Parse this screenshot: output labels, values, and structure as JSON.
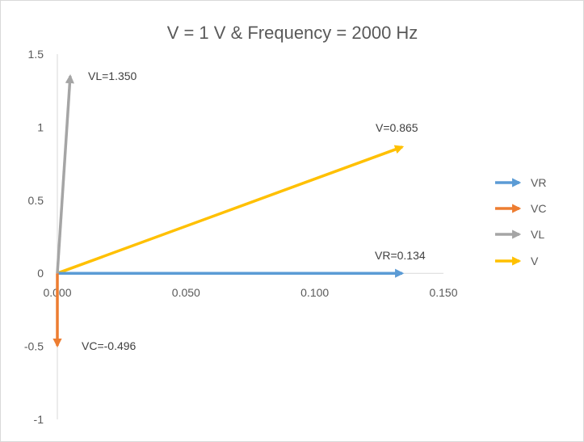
{
  "chart_data": {
    "type": "scatter",
    "title": "V = 1 V & Frequency = 2000 Hz",
    "xlabel": "",
    "ylabel": "",
    "xlim": [
      0,
      0.15
    ],
    "ylim": [
      -1,
      1.5
    ],
    "x_ticks": [
      "0.000",
      "0.050",
      "0.100",
      "0.150"
    ],
    "y_ticks": [
      "-1",
      "-0.5",
      "0",
      "0.5",
      "1",
      "1.5"
    ],
    "grid": false,
    "legend_position": "right",
    "series": [
      {
        "name": "VR",
        "color": "#5b9bd5",
        "points": [
          [
            0,
            0
          ],
          [
            0.134,
            0
          ]
        ],
        "label": "VR=0.134"
      },
      {
        "name": "VC",
        "color": "#ed7d31",
        "points": [
          [
            0,
            0
          ],
          [
            0,
            -0.496
          ]
        ],
        "label": "VC=-0.496"
      },
      {
        "name": "VL",
        "color": "#a5a5a5",
        "points": [
          [
            0,
            0
          ],
          [
            0.005,
            1.35
          ]
        ],
        "label": "VL=1.350"
      },
      {
        "name": "V",
        "color": "#ffc000",
        "points": [
          [
            0,
            0
          ],
          [
            0.134,
            0.865
          ]
        ],
        "label": "V=0.865"
      }
    ]
  }
}
